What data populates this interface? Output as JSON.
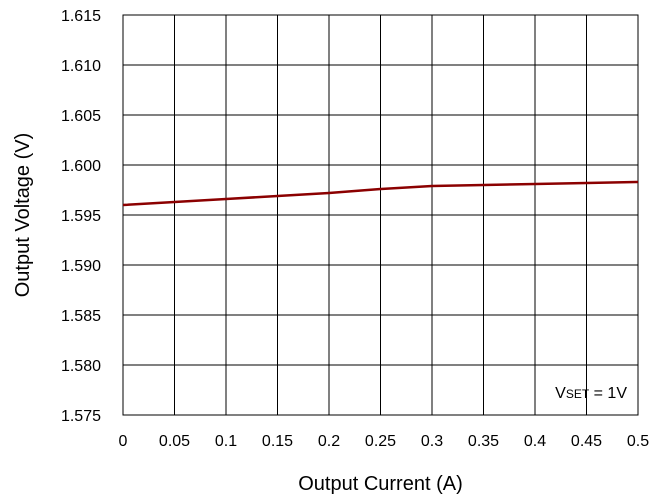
{
  "chart_data": {
    "type": "line",
    "title": "",
    "xlabel": "Output Current (A)",
    "ylabel": "Output Voltage (V)",
    "xlim": [
      0,
      0.5
    ],
    "ylim": [
      1.575,
      1.615
    ],
    "x_ticks": [
      "0",
      "0.05",
      "0.1",
      "0.15",
      "0.2",
      "0.25",
      "0.3",
      "0.35",
      "0.4",
      "0.45",
      "0.5"
    ],
    "y_ticks": [
      "1.575",
      "1.580",
      "1.585",
      "1.590",
      "1.595",
      "1.600",
      "1.605",
      "1.610",
      "1.615"
    ],
    "grid": true,
    "line_color": "#8b0000",
    "annotation": {
      "prefix": "V",
      "subscript": "SET",
      "suffix": " = 1V"
    },
    "series": [
      {
        "x": [
          0,
          0.05,
          0.1,
          0.15,
          0.2,
          0.25,
          0.3,
          0.35,
          0.4,
          0.45,
          0.5
        ],
        "y": [
          1.596,
          1.5963,
          1.5966,
          1.5969,
          1.5972,
          1.5976,
          1.5979,
          1.598,
          1.5981,
          1.5982,
          1.5983
        ]
      }
    ]
  }
}
